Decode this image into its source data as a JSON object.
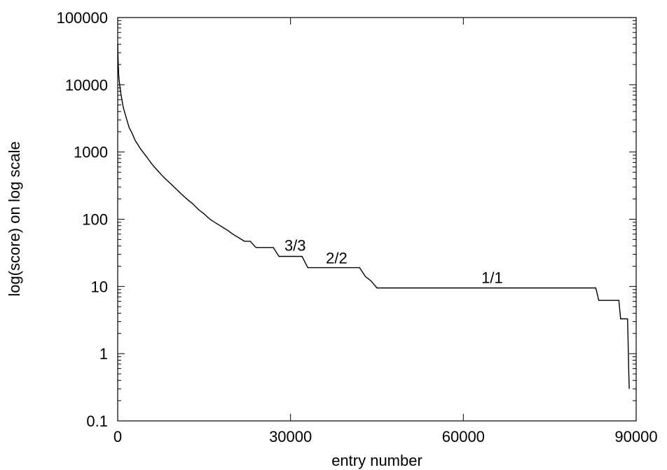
{
  "chart_data": {
    "type": "line",
    "title": "",
    "xlabel": "entry number",
    "ylabel": "log(score) on log scale",
    "xlim": [
      0,
      90000
    ],
    "ylim": [
      0.1,
      100000
    ],
    "yscale": "log",
    "grid": false,
    "legend": "none",
    "x_ticks": [
      {
        "value": 0,
        "label": "0"
      },
      {
        "value": 30000,
        "label": "30000"
      },
      {
        "value": 60000,
        "label": "60000"
      },
      {
        "value": 90000,
        "label": "90000"
      }
    ],
    "y_ticks": [
      {
        "value": 0.1,
        "label": "0.1"
      },
      {
        "value": 1,
        "label": "1"
      },
      {
        "value": 10,
        "label": "10"
      },
      {
        "value": 100,
        "label": "100"
      },
      {
        "value": 1000,
        "label": "1000"
      },
      {
        "value": 10000,
        "label": "10000"
      },
      {
        "value": 100000,
        "label": "100000"
      }
    ],
    "series": [
      {
        "color": "#000000",
        "points": [
          [
            0,
            40000
          ],
          [
            100,
            20000
          ],
          [
            200,
            13000
          ],
          [
            400,
            9000
          ],
          [
            600,
            7000
          ],
          [
            800,
            5500
          ],
          [
            1000,
            4500
          ],
          [
            1500,
            3200
          ],
          [
            2000,
            2300
          ],
          [
            2500,
            1900
          ],
          [
            3000,
            1500
          ],
          [
            4000,
            1100
          ],
          [
            5000,
            850
          ],
          [
            6000,
            650
          ],
          [
            7000,
            520
          ],
          [
            8000,
            420
          ],
          [
            9000,
            350
          ],
          [
            10000,
            290
          ],
          [
            11000,
            240
          ],
          [
            12000,
            200
          ],
          [
            13000,
            170
          ],
          [
            14000,
            140
          ],
          [
            15000,
            120
          ],
          [
            16000,
            100
          ],
          [
            17000,
            88
          ],
          [
            18000,
            78
          ],
          [
            19000,
            69
          ],
          [
            20000,
            60
          ],
          [
            21000,
            53
          ],
          [
            22000,
            47
          ],
          [
            23000,
            47
          ],
          [
            24000,
            38
          ],
          [
            27000,
            38
          ],
          [
            28000,
            28
          ],
          [
            32000,
            28
          ],
          [
            33000,
            19
          ],
          [
            42000,
            19
          ],
          [
            43000,
            14
          ],
          [
            44000,
            12
          ],
          [
            45000,
            9.5
          ],
          [
            83000,
            9.5
          ],
          [
            83500,
            6.2
          ],
          [
            87000,
            6.2
          ],
          [
            87300,
            3.3
          ],
          [
            88500,
            3.3
          ],
          [
            88600,
            1.5
          ],
          [
            88700,
            0.6
          ],
          [
            88800,
            0.3
          ]
        ]
      }
    ],
    "annotations": [
      {
        "text": "3/3",
        "x": 30800,
        "y": 34
      },
      {
        "text": "2/2",
        "x": 38000,
        "y": 22
      },
      {
        "text": "1/1",
        "x": 65000,
        "y": 11.2
      }
    ]
  }
}
